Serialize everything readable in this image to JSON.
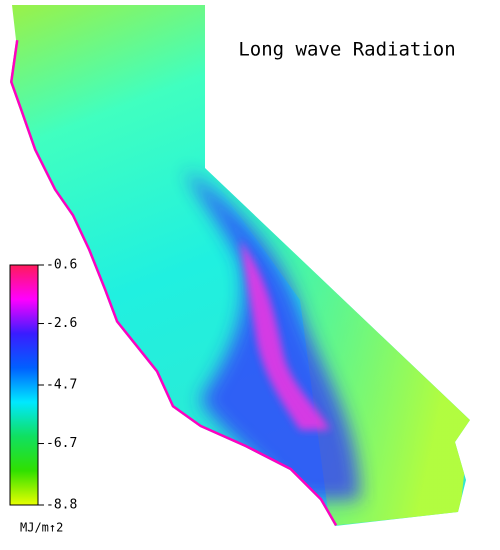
{
  "title": "Long wave Radiation",
  "colorbar": {
    "ticks": [
      -0.6,
      -2.6,
      -4.7,
      -6.7,
      -8.8
    ],
    "unit": "MJ/m↑2",
    "colors": [
      "#ff1a5a",
      "#ff00ff",
      "#3a1cff",
      "#0060ff",
      "#00e8ff",
      "#10e060",
      "#30e000",
      "#e8ff00"
    ]
  }
}
